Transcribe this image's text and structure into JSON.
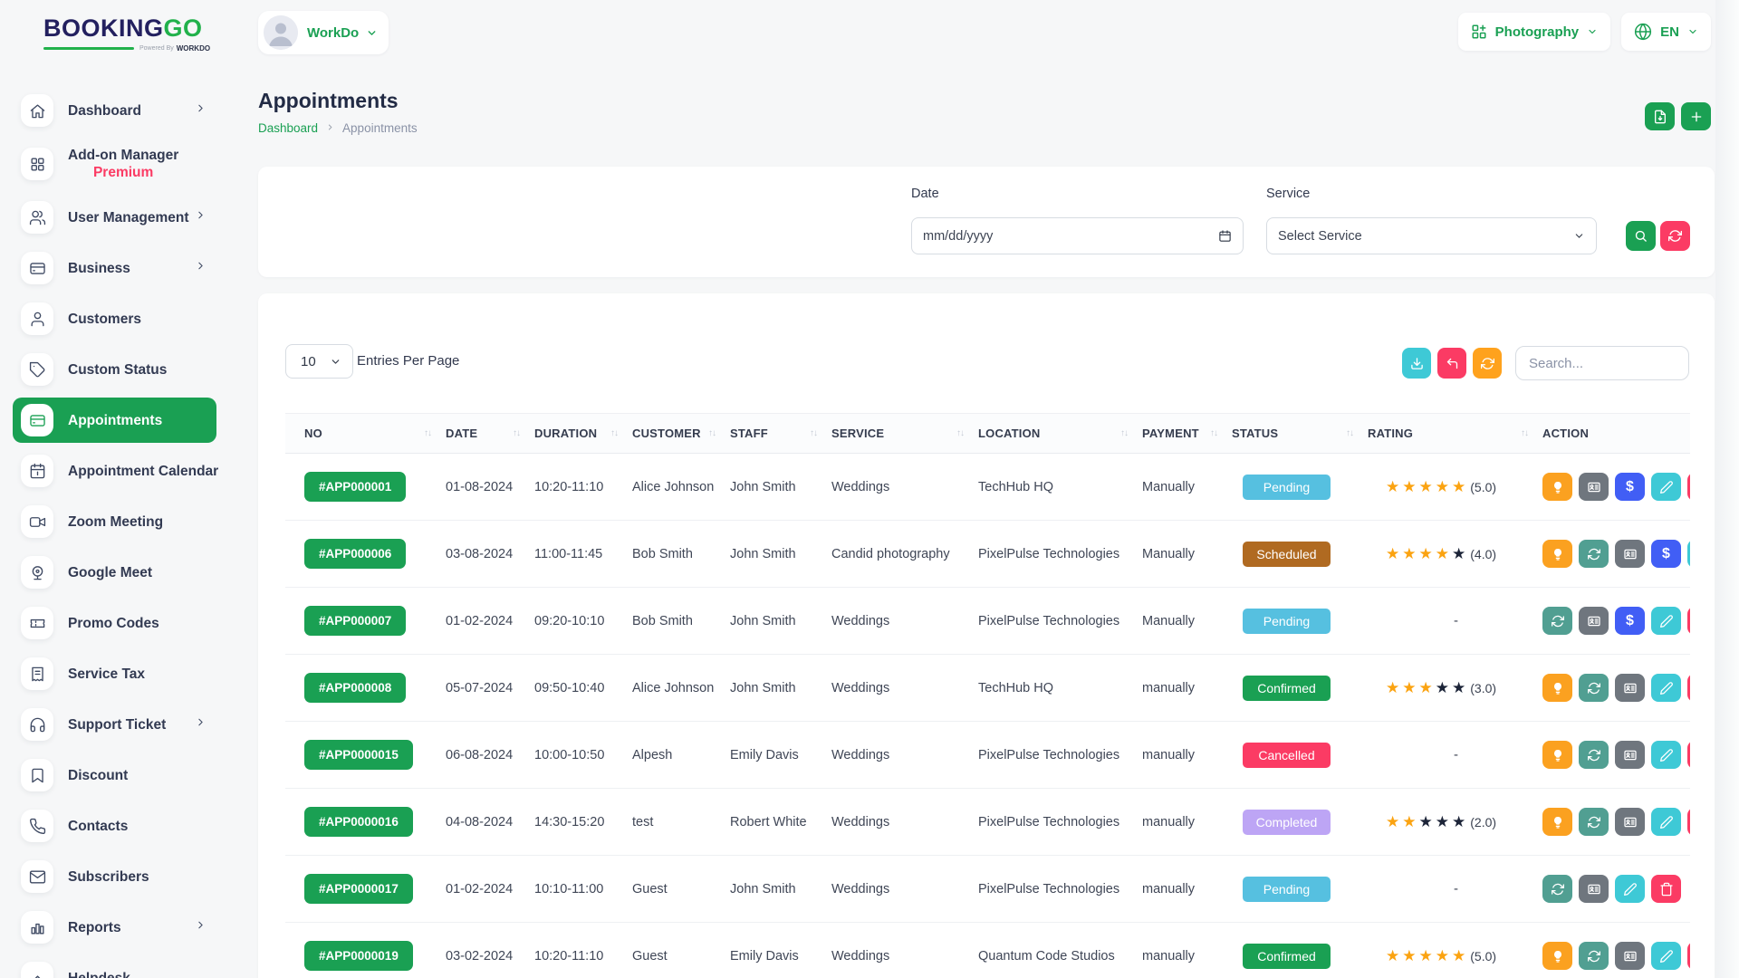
{
  "colors": {
    "primary": "#1aa053",
    "status": {
      "Pending": "#56c0e0",
      "Scheduled": "#b06a21",
      "Confirmed": "#1aa053",
      "Cancelled": "#fb3b64",
      "Completed": "#bda5f5"
    },
    "actions": {
      "bulb": "#fba120",
      "sync": "#519f92",
      "detail": "#6f767e",
      "dollar": "#415ef5",
      "edit": "#3ec9d6",
      "trash": "#fb3b64",
      "sliver-red": "#fb3b64",
      "sliver-teal": "#3ec9d6"
    },
    "star_filled": "#fba311",
    "star_empty": "#1c2438"
  },
  "brand": {
    "name_a": "BOOKING",
    "name_b": "GO",
    "powered_prefix": "Powered By",
    "powered_brand": "WORKDO"
  },
  "topbar": {
    "workspace_label": "WorkDo",
    "module_label": "Photography",
    "language_label": "EN"
  },
  "sidebar": {
    "items": [
      {
        "label": "Dashboard",
        "icon": "home",
        "chevron": true
      },
      {
        "label": "Add-on Manager",
        "sublabel": "Premium",
        "icon": "grid"
      },
      {
        "label": "User Management",
        "icon": "users",
        "chevron": true
      },
      {
        "label": "Business",
        "icon": "card",
        "chevron": true
      },
      {
        "label": "Customers",
        "icon": "user"
      },
      {
        "label": "Custom Status",
        "icon": "tag"
      },
      {
        "label": "Appointments",
        "icon": "card",
        "active": true
      },
      {
        "label": "Appointment Calendar",
        "icon": "calendar"
      },
      {
        "label": "Zoom Meeting",
        "icon": "video"
      },
      {
        "label": "Google Meet",
        "icon": "webcam"
      },
      {
        "label": "Promo Codes",
        "icon": "ticket"
      },
      {
        "label": "Service Tax",
        "icon": "receipt"
      },
      {
        "label": "Support Ticket",
        "icon": "headphones",
        "chevron": true
      },
      {
        "label": "Discount",
        "icon": "bookmark"
      },
      {
        "label": "Contacts",
        "icon": "phone"
      },
      {
        "label": "Subscribers",
        "icon": "mail"
      },
      {
        "label": "Reports",
        "icon": "barchart",
        "chevron": true
      },
      {
        "label": "Helpdesk",
        "icon": "chevronup"
      }
    ]
  },
  "page": {
    "title": "Appointments",
    "breadcrumb_root": "Dashboard",
    "breadcrumb_current": "Appointments"
  },
  "filterbar": {
    "date_label": "Date",
    "date_value": "mm/dd/yyyy",
    "service_label": "Service",
    "service_value": "Select Service"
  },
  "controls": {
    "entries_value": "10",
    "entries_label": "Entries Per Page",
    "search_placeholder": "Search..."
  },
  "table": {
    "columns": [
      {
        "label": "NO",
        "sortable": true
      },
      {
        "label": "DATE",
        "sortable": true
      },
      {
        "label": "DURATION",
        "sortable": true
      },
      {
        "label": "CUSTOMER",
        "sortable": true
      },
      {
        "label": "STAFF",
        "sortable": true
      },
      {
        "label": "SERVICE",
        "sortable": true
      },
      {
        "label": "LOCATION",
        "sortable": true
      },
      {
        "label": "PAYMENT",
        "sortable": true
      },
      {
        "label": "STATUS",
        "sortable": true
      },
      {
        "label": "RATING",
        "sortable": true
      },
      {
        "label": "ACTION",
        "sortable": false
      }
    ],
    "rows": [
      {
        "no": "#APP000001",
        "date": "01-08-2024",
        "duration": "10:20-11:10",
        "customer": "Alice Johnson",
        "staff": "John Smith",
        "service": "Weddings",
        "location": "TechHub HQ",
        "payment": "Manually",
        "status": "Pending",
        "rating": {
          "filled": 5,
          "label": "(5.0)"
        },
        "actions": [
          "bulb",
          "detail",
          "dollar",
          "edit",
          "sliver-red"
        ]
      },
      {
        "no": "#APP000006",
        "date": "03-08-2024",
        "duration": "11:00-11:45",
        "customer": "Bob Smith",
        "staff": "John Smith",
        "service": "Candid photography",
        "location": "PixelPulse Technologies",
        "payment": "Manually",
        "status": "Scheduled",
        "rating": {
          "filled": 4,
          "label": "(4.0)"
        },
        "actions": [
          "bulb",
          "sync",
          "detail",
          "dollar",
          "sliver-teal"
        ]
      },
      {
        "no": "#APP000007",
        "date": "01-02-2024",
        "duration": "09:20-10:10",
        "customer": "Bob Smith",
        "staff": "John Smith",
        "service": "Weddings",
        "location": "PixelPulse Technologies",
        "payment": "Manually",
        "status": "Pending",
        "rating": null,
        "actions": [
          "sync",
          "detail",
          "dollar",
          "edit",
          "sliver-red"
        ]
      },
      {
        "no": "#APP000008",
        "date": "05-07-2024",
        "duration": "09:50-10:40",
        "customer": "Alice Johnson",
        "staff": "John Smith",
        "service": "Weddings",
        "location": "TechHub HQ",
        "payment": "manually",
        "status": "Confirmed",
        "rating": {
          "filled": 3,
          "label": "(3.0)"
        },
        "actions": [
          "bulb",
          "sync",
          "detail",
          "edit",
          "sliver-red"
        ]
      },
      {
        "no": "#APP0000015",
        "date": "06-08-2024",
        "duration": "10:00-10:50",
        "customer": "Alpesh",
        "staff": "Emily Davis",
        "service": "Weddings",
        "location": "PixelPulse Technologies",
        "payment": "manually",
        "status": "Cancelled",
        "rating": null,
        "actions": [
          "bulb",
          "sync",
          "detail",
          "edit",
          "sliver-red"
        ]
      },
      {
        "no": "#APP0000016",
        "date": "04-08-2024",
        "duration": "14:30-15:20",
        "customer": "test",
        "staff": "Robert White",
        "service": "Weddings",
        "location": "PixelPulse Technologies",
        "payment": "manually",
        "status": "Completed",
        "rating": {
          "filled": 2,
          "label": "(2.0)"
        },
        "actions": [
          "bulb",
          "sync",
          "detail",
          "edit",
          "sliver-red"
        ]
      },
      {
        "no": "#APP0000017",
        "date": "01-02-2024",
        "duration": "10:10-11:00",
        "customer": "Guest",
        "staff": "John Smith",
        "service": "Weddings",
        "location": "PixelPulse Technologies",
        "payment": "manually",
        "status": "Pending",
        "rating": null,
        "actions": [
          "sync",
          "detail",
          "edit",
          "trash"
        ]
      },
      {
        "no": "#APP0000019",
        "date": "03-02-2024",
        "duration": "10:20-11:10",
        "customer": "Guest",
        "staff": "Emily Davis",
        "service": "Weddings",
        "location": "Quantum Code Studios",
        "payment": "manually",
        "status": "Confirmed",
        "rating": {
          "filled": 5,
          "label": "(5.0)"
        },
        "actions": [
          "bulb",
          "sync",
          "detail",
          "edit",
          "sliver-red"
        ]
      }
    ]
  }
}
